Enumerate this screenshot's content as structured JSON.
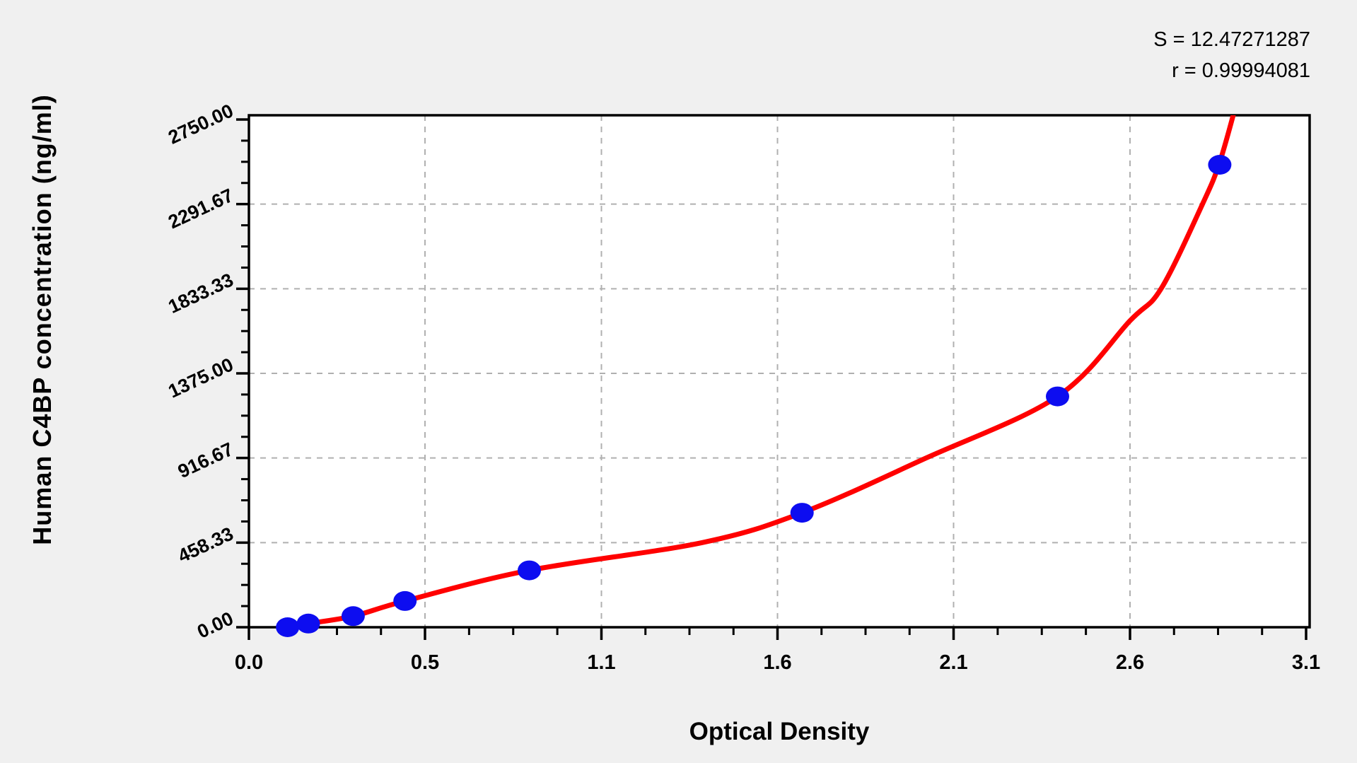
{
  "chart_data": {
    "type": "scatter",
    "title": "",
    "xlabel": "Optical Density",
    "ylabel": "Human C4BP concentration (ng/ml)",
    "annotations": {
      "s_label": "S = 12.47271287",
      "r_label": "r = 0.99994081"
    },
    "x_axis": {
      "min": 0.038,
      "max": 3.1,
      "tick_values": [
        0.038,
        0.548,
        1.059,
        1.569,
        2.079,
        2.59,
        3.1
      ],
      "tick_labels": [
        "0.0",
        "0.5",
        "1.1",
        "1.6",
        "2.1",
        "2.6",
        "3.1"
      ],
      "minor_ticks_between_majors": 3
    },
    "y_axis": {
      "min": 0,
      "max": 2750,
      "tick_values": [
        0,
        458.33,
        916.67,
        1375.0,
        1833.33,
        2291.67,
        2750.0
      ],
      "tick_labels": [
        "0.00",
        "458.33",
        "916.67",
        "1375.00",
        "1833.33",
        "2291.67",
        "2750.00"
      ],
      "minor_ticks_between_majors": 3
    },
    "grid": "dashed",
    "legend_position": "none",
    "series": [
      {
        "name": "standard-points",
        "type": "scatter",
        "points": [
          {
            "x": 0.15,
            "y": 0
          },
          {
            "x": 0.21,
            "y": 20
          },
          {
            "x": 0.34,
            "y": 60
          },
          {
            "x": 0.49,
            "y": 142
          },
          {
            "x": 0.85,
            "y": 308
          },
          {
            "x": 1.64,
            "y": 620
          },
          {
            "x": 2.38,
            "y": 1250
          },
          {
            "x": 2.85,
            "y": 2505
          }
        ]
      },
      {
        "name": "fitted-curve",
        "type": "line",
        "points": [
          {
            "x": 0.135,
            "y": -12
          },
          {
            "x": 0.155,
            "y": 2
          },
          {
            "x": 0.21,
            "y": 20
          },
          {
            "x": 0.34,
            "y": 60
          },
          {
            "x": 0.49,
            "y": 142
          },
          {
            "x": 0.85,
            "y": 308
          },
          {
            "x": 1.35,
            "y": 458
          },
          {
            "x": 1.64,
            "y": 620
          },
          {
            "x": 2.0,
            "y": 917
          },
          {
            "x": 2.38,
            "y": 1250
          },
          {
            "x": 2.59,
            "y": 1660
          },
          {
            "x": 2.68,
            "y": 1833
          },
          {
            "x": 2.8,
            "y": 2292
          },
          {
            "x": 2.85,
            "y": 2520
          },
          {
            "x": 2.9,
            "y": 2850
          }
        ]
      }
    ],
    "colors": {
      "curve": "#ff0000",
      "point": "#0d0df0",
      "grid": "#b0b0b0",
      "axis": "#000000",
      "background": "#f0f0f0",
      "plot_background": "#ffffff",
      "text": "#000000"
    }
  }
}
